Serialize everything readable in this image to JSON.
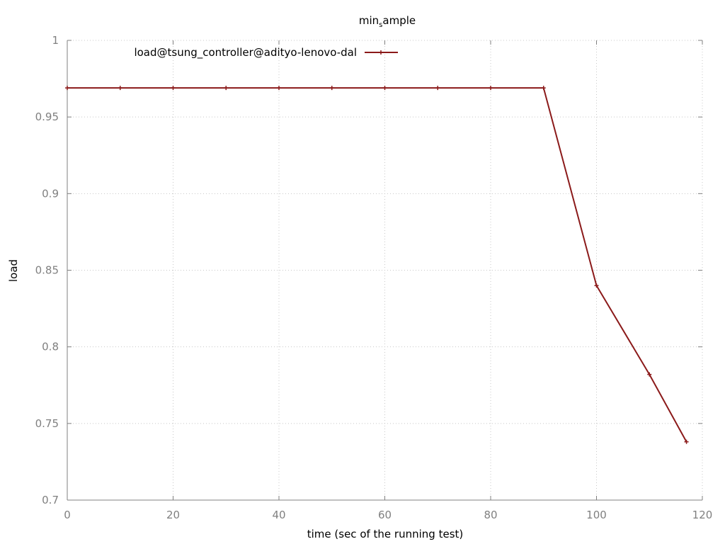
{
  "chart_data": {
    "type": "line",
    "title_main": "min",
    "title_sub": "s",
    "title_rest": "ample",
    "xlabel": "time (sec of the running test)",
    "ylabel": "load",
    "xlim": [
      0,
      120
    ],
    "ylim": [
      0.7,
      1.0
    ],
    "xticks": [
      0,
      20,
      40,
      60,
      80,
      100,
      120
    ],
    "yticks": [
      0.7,
      0.75,
      0.8,
      0.85,
      0.9,
      0.95,
      1
    ],
    "ytick_labels": [
      "0.7",
      "0.75",
      "0.8",
      "0.85",
      "0.9",
      "0.95",
      "1"
    ],
    "grid": true,
    "legend_position": "top-left",
    "series": [
      {
        "name": "load@tsung_controller@adityo-lenovo-dal",
        "color": "#8b1a1a",
        "x": [
          0,
          10,
          20,
          30,
          40,
          50,
          60,
          70,
          80,
          90,
          100,
          110,
          117
        ],
        "y": [
          0.969,
          0.969,
          0.969,
          0.969,
          0.969,
          0.969,
          0.969,
          0.969,
          0.969,
          0.969,
          0.84,
          0.782,
          0.738
        ]
      }
    ]
  }
}
